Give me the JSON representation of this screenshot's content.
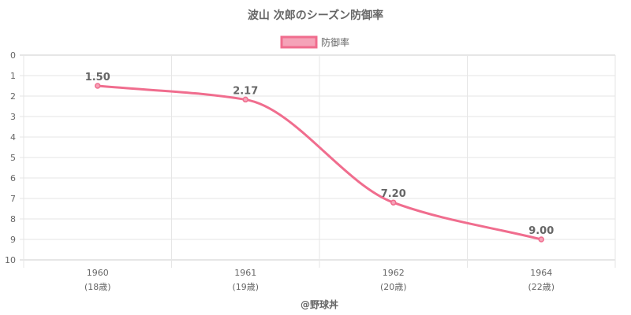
{
  "chart_data": {
    "type": "line",
    "title": "波山 次郎のシーズン防御率",
    "categories": [
      "1960",
      "1961",
      "1962",
      "1964"
    ],
    "category_sublabels": [
      "(18歳)",
      "(19歳)",
      "(20歳)",
      "(22歳)"
    ],
    "series": [
      {
        "name": "防御率",
        "values": [
          1.5,
          2.17,
          7.2,
          9.0
        ],
        "labels": [
          "1.50",
          "2.17",
          "7.20",
          "9.00"
        ]
      }
    ],
    "ylim": [
      0,
      10
    ],
    "y_reversed": true,
    "y_ticks": [
      "0",
      "1",
      "2",
      "3",
      "4",
      "5",
      "6",
      "7",
      "8",
      "9",
      "10"
    ],
    "grid": true,
    "legend_position": "top",
    "footer": "@野球丼",
    "colors": {
      "line": "#f06d8e",
      "fill": "#f5a3b8",
      "grid": "#e6e6e6",
      "text": "#666666"
    }
  }
}
